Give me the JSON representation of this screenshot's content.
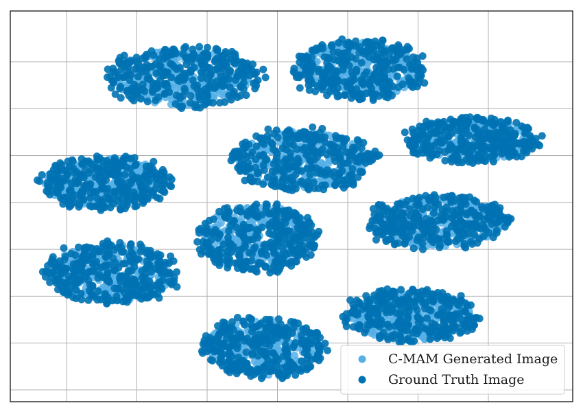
{
  "chart_data": {
    "type": "scatter",
    "title": "",
    "xlabel": "",
    "ylabel": "",
    "xlim": [
      0,
      100
    ],
    "ylim": [
      0,
      100
    ],
    "grid": true,
    "tick_labels": false,
    "x_gridlines": [
      10,
      22.5,
      35,
      47.5,
      60,
      72.5,
      85
    ],
    "y_gridlines": [
      3,
      15,
      27,
      39,
      51,
      63,
      75,
      87
    ],
    "legend_position": "lower-right",
    "series": [
      {
        "name": "C-MAM Generated Image",
        "color": "#56b0e6"
      },
      {
        "name": "Ground Truth Image",
        "color": "#0072b2"
      }
    ],
    "clusters": [
      {
        "cx": 31,
        "cy": 83,
        "rx": 14,
        "ry": 8
      },
      {
        "cx": 62,
        "cy": 85,
        "rx": 12,
        "ry": 8
      },
      {
        "cx": 17,
        "cy": 56,
        "rx": 12,
        "ry": 7
      },
      {
        "cx": 52,
        "cy": 62,
        "rx": 13,
        "ry": 8
      },
      {
        "cx": 82,
        "cy": 67,
        "rx": 12,
        "ry": 6
      },
      {
        "cx": 44,
        "cy": 42,
        "rx": 11,
        "ry": 9
      },
      {
        "cx": 76,
        "cy": 46,
        "rx": 13,
        "ry": 7
      },
      {
        "cx": 18,
        "cy": 33,
        "rx": 12,
        "ry": 8
      },
      {
        "cx": 45,
        "cy": 14,
        "rx": 11,
        "ry": 8
      },
      {
        "cx": 71,
        "cy": 22,
        "rx": 12,
        "ry": 7
      }
    ]
  }
}
